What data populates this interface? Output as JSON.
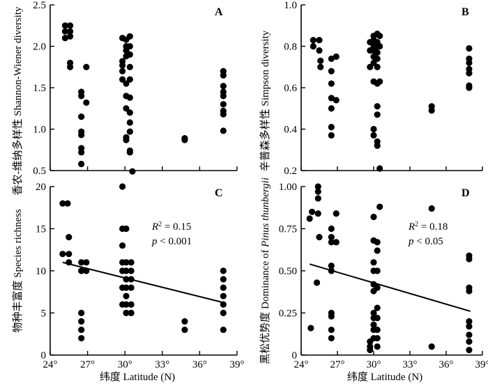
{
  "figure": {
    "x_axis_title": "纬度 Latitude (N)"
  },
  "chart_data": [
    {
      "panel": "A",
      "type": "scatter",
      "ylabel": "香农-维纳多样性 Shannon-Wiener diversity",
      "xlim": [
        24,
        39
      ],
      "ylim": [
        0.5,
        2.5
      ],
      "x_ticks": [
        24,
        27,
        30,
        33,
        36,
        39
      ],
      "x_tick_labels": [
        "24°",
        "27°",
        "30°",
        "33°",
        "36°",
        "39°"
      ],
      "y_ticks": [
        0.5,
        1.0,
        1.5,
        2.0,
        2.5
      ],
      "y_tick_labels": [
        "0.5",
        "1.0",
        "1.5",
        "2.0",
        "2.5"
      ],
      "show_x_tick_labels": false,
      "points": [
        [
          25.2,
          2.25
        ],
        [
          25.2,
          2.18
        ],
        [
          25.2,
          2.1
        ],
        [
          25.6,
          2.25
        ],
        [
          25.6,
          2.18
        ],
        [
          25.6,
          2.12
        ],
        [
          25.6,
          1.8
        ],
        [
          25.6,
          1.75
        ],
        [
          26.5,
          1.45
        ],
        [
          26.5,
          1.4
        ],
        [
          26.5,
          1.15
        ],
        [
          26.5,
          0.97
        ],
        [
          26.5,
          0.93
        ],
        [
          26.5,
          0.77
        ],
        [
          26.5,
          0.72
        ],
        [
          26.5,
          0.58
        ],
        [
          26.9,
          1.75
        ],
        [
          26.9,
          1.32
        ],
        [
          29.8,
          2.1
        ],
        [
          29.8,
          1.82
        ],
        [
          29.8,
          1.77
        ],
        [
          29.8,
          1.7
        ],
        [
          29.8,
          1.6
        ],
        [
          30.1,
          2.08
        ],
        [
          30.1,
          2.0
        ],
        [
          30.1,
          1.95
        ],
        [
          30.1,
          1.88
        ],
        [
          30.1,
          1.55
        ],
        [
          30.1,
          1.4
        ],
        [
          30.1,
          1.25
        ],
        [
          30.1,
          0.9
        ],
        [
          30.1,
          0.87
        ],
        [
          30.4,
          2.12
        ],
        [
          30.4,
          2.0
        ],
        [
          30.4,
          1.9
        ],
        [
          30.4,
          1.75
        ],
        [
          30.4,
          1.6
        ],
        [
          30.4,
          1.38
        ],
        [
          30.4,
          1.2
        ],
        [
          30.4,
          1.08
        ],
        [
          30.4,
          0.97
        ],
        [
          30.4,
          0.74
        ],
        [
          30.4,
          0.72
        ],
        [
          30.6,
          0.49
        ],
        [
          34.8,
          0.89
        ],
        [
          34.8,
          0.87
        ],
        [
          37.9,
          1.7
        ],
        [
          37.9,
          1.65
        ],
        [
          37.9,
          1.52
        ],
        [
          37.9,
          1.45
        ],
        [
          37.9,
          1.4
        ],
        [
          37.9,
          1.3
        ],
        [
          37.9,
          1.22
        ],
        [
          37.9,
          1.18
        ],
        [
          37.9,
          0.98
        ]
      ],
      "annotations": []
    },
    {
      "panel": "B",
      "type": "scatter",
      "ylabel": "辛普森多样性 Simpson diversity",
      "xlim": [
        24,
        39
      ],
      "ylim": [
        0.2,
        1.0
      ],
      "x_ticks": [
        24,
        27,
        30,
        33,
        36,
        39
      ],
      "x_tick_labels": [
        "24°",
        "27°",
        "30°",
        "33°",
        "36°",
        "39°"
      ],
      "y_ticks": [
        0.2,
        0.4,
        0.6,
        0.8,
        1.0
      ],
      "y_tick_labels": [
        "0.2",
        "0.4",
        "0.6",
        "0.8",
        "1.0"
      ],
      "show_x_tick_labels": false,
      "points": [
        [
          25.0,
          0.83
        ],
        [
          25.0,
          0.8
        ],
        [
          25.5,
          0.83
        ],
        [
          25.5,
          0.78
        ],
        [
          25.6,
          0.73
        ],
        [
          25.6,
          0.7
        ],
        [
          26.5,
          0.74
        ],
        [
          26.5,
          0.68
        ],
        [
          26.5,
          0.62
        ],
        [
          26.5,
          0.55
        ],
        [
          26.5,
          0.5
        ],
        [
          26.5,
          0.41
        ],
        [
          26.5,
          0.37
        ],
        [
          26.9,
          0.75
        ],
        [
          26.9,
          0.54
        ],
        [
          29.7,
          0.82
        ],
        [
          29.7,
          0.78
        ],
        [
          29.7,
          0.7
        ],
        [
          30.0,
          0.85
        ],
        [
          30.0,
          0.83
        ],
        [
          30.0,
          0.8
        ],
        [
          30.0,
          0.78
        ],
        [
          30.0,
          0.75
        ],
        [
          30.0,
          0.72
        ],
        [
          30.0,
          0.63
        ],
        [
          30.0,
          0.4
        ],
        [
          30.0,
          0.37
        ],
        [
          30.3,
          0.86
        ],
        [
          30.3,
          0.82
        ],
        [
          30.3,
          0.8
        ],
        [
          30.3,
          0.77
        ],
        [
          30.3,
          0.74
        ],
        [
          30.3,
          0.7
        ],
        [
          30.3,
          0.62
        ],
        [
          30.3,
          0.51
        ],
        [
          30.3,
          0.47
        ],
        [
          30.3,
          0.34
        ],
        [
          30.3,
          0.32
        ],
        [
          30.5,
          0.85
        ],
        [
          30.5,
          0.8
        ],
        [
          30.5,
          0.63
        ],
        [
          30.5,
          0.21
        ],
        [
          34.8,
          0.51
        ],
        [
          34.8,
          0.49
        ],
        [
          37.9,
          0.79
        ],
        [
          37.9,
          0.74
        ],
        [
          37.9,
          0.72
        ],
        [
          37.9,
          0.69
        ],
        [
          37.9,
          0.67
        ],
        [
          37.9,
          0.61
        ],
        [
          37.9,
          0.6
        ]
      ],
      "annotations": []
    },
    {
      "panel": "C",
      "type": "scatter",
      "ylabel": "物种丰富度 Species richness",
      "xlim": [
        24,
        39
      ],
      "ylim": [
        0,
        20
      ],
      "x_ticks": [
        24,
        27,
        30,
        33,
        36,
        39
      ],
      "x_tick_labels": [
        "24°",
        "27°",
        "30°",
        "33°",
        "36°",
        "39°"
      ],
      "y_ticks": [
        0,
        5,
        10,
        15,
        20
      ],
      "y_tick_labels": [
        "0",
        "5",
        "10",
        "15",
        "20"
      ],
      "show_x_tick_labels": true,
      "points": [
        [
          25.0,
          18
        ],
        [
          25.0,
          12
        ],
        [
          25.4,
          18
        ],
        [
          25.5,
          14
        ],
        [
          25.5,
          12
        ],
        [
          25.5,
          11
        ],
        [
          26.5,
          11
        ],
        [
          26.5,
          10
        ],
        [
          26.5,
          5
        ],
        [
          26.5,
          4
        ],
        [
          26.5,
          3
        ],
        [
          26.5,
          2
        ],
        [
          26.9,
          11
        ],
        [
          26.9,
          10
        ],
        [
          29.8,
          20
        ],
        [
          29.8,
          15
        ],
        [
          29.8,
          13
        ],
        [
          29.8,
          11
        ],
        [
          29.8,
          10
        ],
        [
          29.8,
          8
        ],
        [
          29.8,
          6
        ],
        [
          30.1,
          15
        ],
        [
          30.1,
          11
        ],
        [
          30.1,
          10
        ],
        [
          30.1,
          9
        ],
        [
          30.1,
          8
        ],
        [
          30.1,
          7
        ],
        [
          30.1,
          6
        ],
        [
          30.1,
          5
        ],
        [
          30.5,
          11
        ],
        [
          30.5,
          10
        ],
        [
          30.5,
          9
        ],
        [
          30.5,
          8
        ],
        [
          30.5,
          6
        ],
        [
          30.5,
          5
        ],
        [
          34.8,
          4
        ],
        [
          34.8,
          3
        ],
        [
          37.9,
          10
        ],
        [
          37.9,
          9
        ],
        [
          37.9,
          8
        ],
        [
          37.9,
          7
        ],
        [
          37.9,
          6
        ],
        [
          37.9,
          5
        ],
        [
          37.9,
          3
        ]
      ],
      "fit_line": {
        "x": [
          25,
          38
        ],
        "y": [
          11.0,
          6.2
        ]
      },
      "annotations": [
        {
          "r2_symbol": "R",
          "r2_sup": "2",
          "r2_value": " = 0.15",
          "p_symbol": "p",
          "p_value": " < 0.001"
        }
      ]
    },
    {
      "panel": "D",
      "type": "scatter",
      "ylabel_prefix": "黑松优势度",
      "ylabel_main": "Dominance of ",
      "ylabel_italic": "Pinus thunbergii",
      "xlim": [
        24,
        39
      ],
      "ylim": [
        0.0,
        1.0
      ],
      "x_ticks": [
        24,
        27,
        30,
        33,
        36,
        39
      ],
      "x_tick_labels": [
        "24°",
        "27°",
        "30°",
        "33°",
        "36°",
        "39°"
      ],
      "y_ticks": [
        0.0,
        0.25,
        0.5,
        0.75,
        1.0
      ],
      "y_tick_labels": [
        "0",
        "0.25",
        "0.50",
        "0.75",
        "1.00"
      ],
      "show_x_tick_labels": true,
      "points": [
        [
          24.7,
          0.81
        ],
        [
          24.9,
          0.85
        ],
        [
          24.8,
          0.16
        ],
        [
          25.4,
          1.0
        ],
        [
          25.4,
          0.97
        ],
        [
          25.4,
          0.93
        ],
        [
          25.4,
          0.84
        ],
        [
          25.5,
          0.7
        ],
        [
          25.3,
          0.43
        ],
        [
          26.5,
          0.75
        ],
        [
          26.5,
          0.7
        ],
        [
          26.5,
          0.67
        ],
        [
          26.5,
          0.53
        ],
        [
          26.5,
          0.5
        ],
        [
          26.5,
          0.25
        ],
        [
          26.5,
          0.23
        ],
        [
          26.5,
          0.15
        ],
        [
          26.5,
          0.1
        ],
        [
          26.9,
          0.84
        ],
        [
          26.9,
          0.67
        ],
        [
          29.7,
          0.08
        ],
        [
          29.7,
          0.05
        ],
        [
          29.7,
          0.03
        ],
        [
          30.0,
          0.82
        ],
        [
          30.0,
          0.68
        ],
        [
          30.0,
          0.55
        ],
        [
          30.0,
          0.5
        ],
        [
          30.0,
          0.42
        ],
        [
          30.0,
          0.38
        ],
        [
          30.0,
          0.25
        ],
        [
          30.0,
          0.22
        ],
        [
          30.0,
          0.18
        ],
        [
          30.0,
          0.15
        ],
        [
          30.0,
          0.1
        ],
        [
          30.3,
          0.67
        ],
        [
          30.3,
          0.62
        ],
        [
          30.3,
          0.5
        ],
        [
          30.3,
          0.4
        ],
        [
          30.3,
          0.28
        ],
        [
          30.3,
          0.22
        ],
        [
          30.3,
          0.15
        ],
        [
          30.3,
          0.1
        ],
        [
          30.3,
          0.05
        ],
        [
          30.5,
          0.88
        ],
        [
          34.8,
          0.87
        ],
        [
          34.8,
          0.05
        ],
        [
          37.9,
          0.59
        ],
        [
          37.9,
          0.57
        ],
        [
          37.9,
          0.4
        ],
        [
          37.9,
          0.38
        ],
        [
          37.9,
          0.2
        ],
        [
          37.9,
          0.17
        ],
        [
          37.9,
          0.12
        ],
        [
          37.9,
          0.08
        ],
        [
          37.9,
          0.03
        ]
      ],
      "fit_line": {
        "x": [
          24.7,
          38
        ],
        "y": [
          0.54,
          0.26
        ]
      },
      "annotations": [
        {
          "r2_symbol": "R",
          "r2_sup": "2",
          "r2_value": " = 0.18",
          "p_symbol": "p",
          "p_value": " < 0.05"
        }
      ]
    }
  ]
}
